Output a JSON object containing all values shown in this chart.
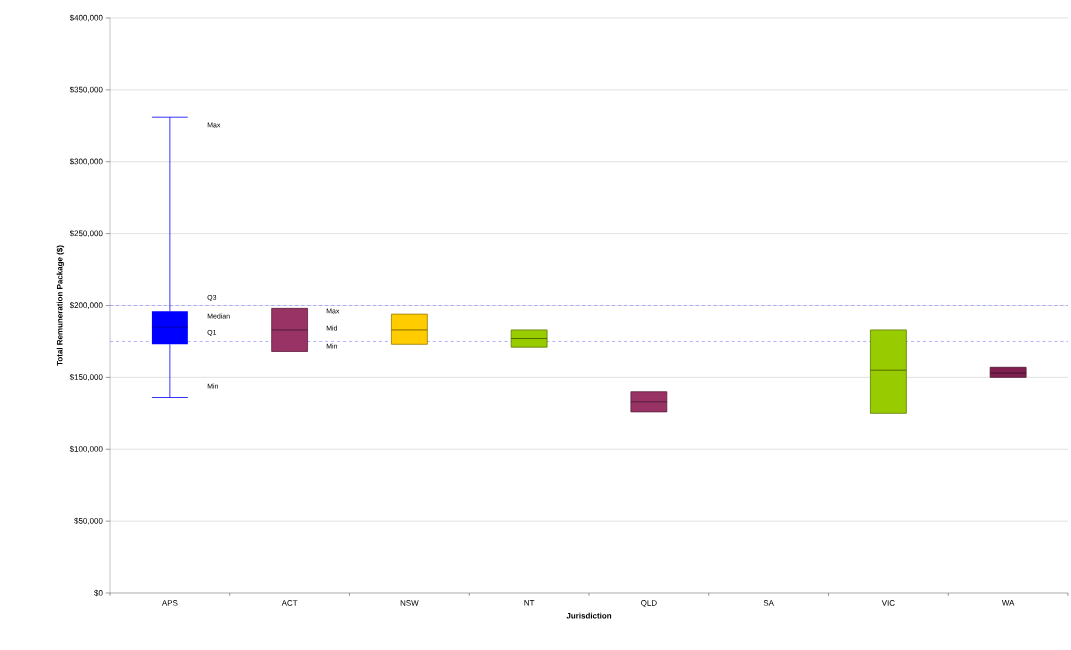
{
  "chart_data": {
    "type": "box",
    "xlabel": "Jurisdiction",
    "ylabel": "Total Remuneration Package ($)",
    "categories": [
      "APS",
      "ACT",
      "NSW",
      "NT",
      "QLD",
      "SA",
      "VIC",
      "WA"
    ],
    "boxes": [
      {
        "low": 136000,
        "q1": 173000,
        "median": 185000,
        "q3": 196000,
        "high": 331000
      },
      {
        "low": 168000,
        "q1": 168000,
        "median": 183000,
        "q3": 198000,
        "high": 198000
      },
      {
        "low": 173000,
        "q1": 173000,
        "median": 183000,
        "q3": 194000,
        "high": 194000
      },
      {
        "low": 171000,
        "q1": 171000,
        "median": 177000,
        "q3": 183000,
        "high": 183000
      },
      {
        "low": 126000,
        "q1": 126000,
        "median": 133000,
        "q3": 140000,
        "high": 140000
      },
      null,
      {
        "low": 125000,
        "q1": 125000,
        "median": 155000,
        "q3": 183000,
        "high": 183000
      },
      {
        "low": 150000,
        "q1": 150000,
        "median": 153000,
        "q3": 157000,
        "high": 157000
      }
    ],
    "colors": [
      "#0000ff",
      "#993366",
      "#ffcc00",
      "#99cc00",
      "#993366",
      "#999999",
      "#99cc00",
      "#7f2050"
    ],
    "ylim": [
      0,
      400000
    ],
    "yticks": [
      {
        "value": 0,
        "label": "$0"
      },
      {
        "value": 50000,
        "label": "$50,000"
      },
      {
        "value": 100000,
        "label": "$100,000"
      },
      {
        "value": 150000,
        "label": "$150,000"
      },
      {
        "value": 200000,
        "label": "$200,000"
      },
      {
        "value": 250000,
        "label": "$250,000"
      },
      {
        "value": 300000,
        "label": "$300,000"
      },
      {
        "value": 350000,
        "label": "$350,000"
      },
      {
        "value": 400000,
        "label": "$400,000"
      }
    ],
    "grid": "y",
    "ref_lines": [
      {
        "axis": "y",
        "value": 200000,
        "color": "#9999ff",
        "line_style": "dashed"
      },
      {
        "axis": "y",
        "value": 175000,
        "color": "#9999ff",
        "line_style": "dashed"
      }
    ],
    "annotations": [
      "Max",
      "Q3",
      "Median",
      "Q1",
      "Min",
      "Max",
      "Mid",
      "Min"
    ]
  }
}
